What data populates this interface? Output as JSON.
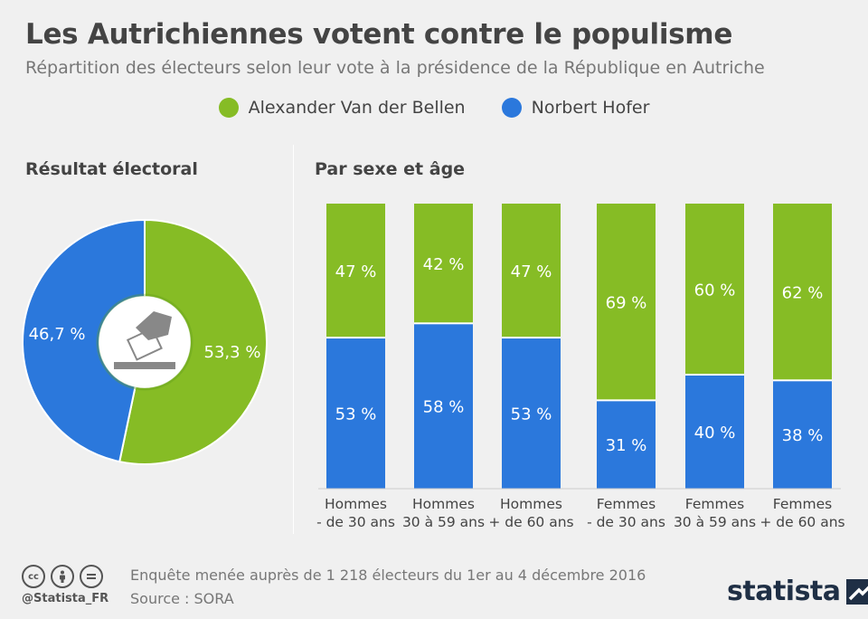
{
  "title": "Les Autrichiennes votent contre le populisme",
  "subtitle": "Répartition des électeurs selon leur vote à la présidence de la République en Autriche",
  "legend": [
    {
      "name": "Alexander Van der Bellen",
      "color": "#86bc25"
    },
    {
      "name": "Norbert Hofer",
      "color": "#2b78dc"
    }
  ],
  "colors": {
    "green": "#86bc25",
    "blue": "#2b78dc"
  },
  "chart_data": [
    {
      "type": "pie",
      "title": "Résultat électoral",
      "slices": [
        {
          "name": "Alexander Van der Bellen",
          "value": 53.3,
          "label": "53,3 %"
        },
        {
          "name": "Norbert Hofer",
          "value": 46.7,
          "label": "46,7 %"
        }
      ],
      "center_icon": "ballot-box-icon"
    },
    {
      "type": "bar",
      "stacked": true,
      "title": "Par sexe et âge",
      "categories": [
        [
          "Hommes",
          "- de 30 ans"
        ],
        [
          "Hommes",
          "30 à 59 ans"
        ],
        [
          "Hommes",
          "+ de 60 ans"
        ],
        [
          "Femmes",
          "- de 30 ans"
        ],
        [
          "Femmes",
          "30 à 59 ans"
        ],
        [
          "Femmes",
          "+ de 60 ans"
        ]
      ],
      "series": [
        {
          "name": "Norbert Hofer",
          "values": [
            53,
            58,
            53,
            31,
            40,
            38
          ],
          "labels": [
            "53 %",
            "58 %",
            "53 %",
            "31 %",
            "40 %",
            "38 %"
          ]
        },
        {
          "name": "Alexander Van der Bellen",
          "values": [
            47,
            42,
            47,
            69,
            60,
            62
          ],
          "labels": [
            "47 %",
            "42 %",
            "47 %",
            "69 %",
            "60 %",
            "62 %"
          ]
        }
      ],
      "ylim": [
        0,
        100
      ]
    }
  ],
  "footer": {
    "license_icons": [
      "cc",
      "by",
      "nd"
    ],
    "handle": "@Statista_FR",
    "note": "Enquête menée auprès de 1 218 électeurs du 1er au 4 décembre 2016",
    "source": "Source : SORA",
    "brand": "statista"
  }
}
